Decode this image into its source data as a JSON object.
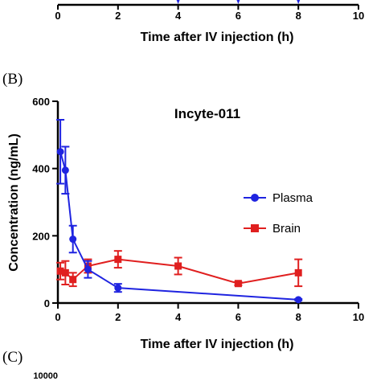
{
  "panel_top": {
    "xticks": [
      "0",
      "2",
      "4",
      "6",
      "8",
      "10"
    ],
    "xlabel": "Time after IV injection (h)"
  },
  "panel_b": {
    "letter": "(B)",
    "chart_data": {
      "type": "line",
      "title": "Incyte-011",
      "xlabel": "Time after IV injection (h)",
      "ylabel": "Concentration (ng/mL)",
      "xlim": [
        0,
        10
      ],
      "ylim": [
        0,
        600
      ],
      "xticks": [
        "0",
        "2",
        "4",
        "6",
        "8",
        "10"
      ],
      "yticks": [
        "0",
        "200",
        "400",
        "600"
      ],
      "legend_position": "right-middle",
      "series": [
        {
          "name": "Plasma",
          "color": "#1f24e0",
          "marker": "circle",
          "x": [
            0.083,
            0.25,
            0.5,
            1,
            2,
            8
          ],
          "y": [
            450,
            395,
            190,
            100,
            45,
            10
          ],
          "err": [
            95,
            70,
            40,
            25,
            12,
            2
          ]
        },
        {
          "name": "Brain",
          "color": "#e01f1f",
          "marker": "square",
          "x": [
            0.083,
            0.25,
            0.5,
            1,
            2,
            4,
            6,
            8
          ],
          "y": [
            95,
            90,
            70,
            110,
            130,
            110,
            58,
            90
          ],
          "err": [
            25,
            35,
            20,
            20,
            25,
            25,
            5,
            40
          ]
        }
      ]
    }
  },
  "panel_c": {
    "letter": "(C)",
    "ytick_top": "10000"
  }
}
